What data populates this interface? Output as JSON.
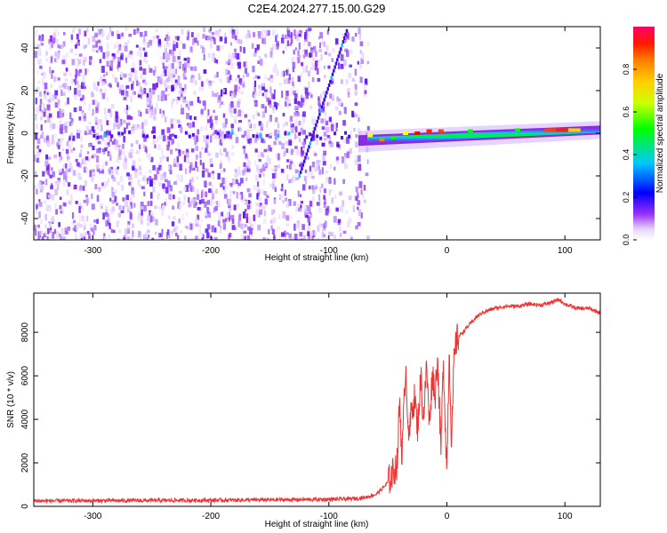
{
  "title": "C2E4.2024.277.15.00.G29",
  "chart_data": [
    {
      "type": "heatmap",
      "xlabel": "Height of straight line (km)",
      "ylabel": "Frequency (Hz)",
      "xlim": [
        -350,
        130
      ],
      "ylim": [
        -50,
        50
      ],
      "xticks": [
        -300,
        -200,
        -100,
        0,
        100
      ],
      "xtick_labels": [
        "-300",
        "-200",
        "-100",
        "0",
        "100"
      ],
      "yticks": [
        -40,
        -20,
        0,
        20,
        40
      ],
      "ytick_labels": [
        "-40",
        "-20",
        "0",
        "20",
        "40"
      ],
      "colorbar": {
        "label": "Normalized spectral amplitude",
        "range": [
          0,
          1
        ],
        "ticks": [
          0.0,
          0.2,
          0.4,
          0.6,
          0.8
        ],
        "tick_labels": [
          "0.0",
          "0.2",
          "0.4",
          "0.6",
          "0.8"
        ],
        "colormap": [
          "#ffffff",
          "#d9b8ff",
          "#8a2be2",
          "#0000ff",
          "#00bfff",
          "#00ff00",
          "#ffff00",
          "#ff8000",
          "#ff0000",
          "#ff0066"
        ]
      },
      "features": {
        "noise_region_x": [
          -350,
          -75
        ],
        "carrier_line": {
          "x": [
            -75,
            130
          ],
          "freq_hz": [
            -3,
            1.5
          ]
        },
        "drift_line": {
          "x": [
            -125,
            -85
          ],
          "freq_hz": [
            -20,
            48
          ]
        }
      },
      "grid": false
    },
    {
      "type": "line",
      "xlabel": "Height of straight line (km)",
      "ylabel": "SNR (10 * v/v)",
      "xlim": [
        -350,
        130
      ],
      "ylim": [
        0,
        9800
      ],
      "xticks": [
        -300,
        -200,
        -100,
        0,
        100
      ],
      "xtick_labels": [
        "-300",
        "-200",
        "-100",
        "0",
        "100"
      ],
      "yticks": [
        0,
        2000,
        4000,
        6000,
        8000
      ],
      "ytick_labels": [
        "0",
        "2000",
        "4000",
        "6000",
        "8000"
      ],
      "color": "#ee3333",
      "x": [
        -350,
        -300,
        -250,
        -200,
        -150,
        -100,
        -80,
        -70,
        -60,
        -55,
        -50,
        -45,
        -42,
        -40,
        -38,
        -35,
        -32,
        -30,
        -27,
        -25,
        -22,
        -20,
        -17,
        -15,
        -12,
        -10,
        -8,
        -5,
        -3,
        0,
        2,
        4,
        6,
        8,
        10,
        15,
        20,
        25,
        30,
        40,
        50,
        60,
        70,
        80,
        90,
        95,
        100,
        110,
        120,
        130
      ],
      "y": [
        250,
        260,
        270,
        280,
        300,
        320,
        350,
        400,
        550,
        800,
        1100,
        1600,
        2000,
        5000,
        2200,
        6500,
        3000,
        4500,
        5000,
        3500,
        6000,
        4000,
        6500,
        3800,
        6200,
        5000,
        7000,
        2500,
        6800,
        1500,
        7300,
        2800,
        6600,
        7600,
        7800,
        8100,
        8400,
        8700,
        8900,
        9100,
        9200,
        9200,
        9300,
        9250,
        9400,
        9500,
        9300,
        9100,
        9100,
        8900
      ],
      "grid": false
    }
  ]
}
